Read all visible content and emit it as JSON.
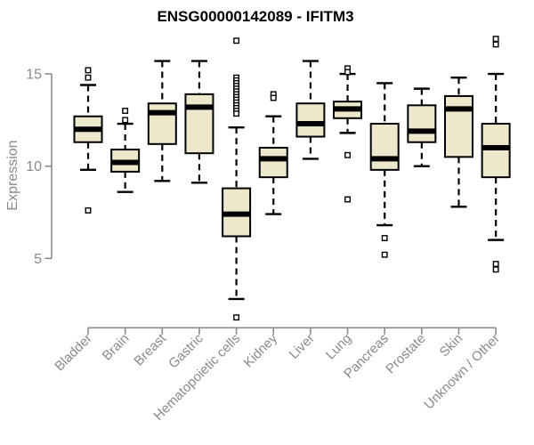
{
  "header": {
    "title": "ENSG00000142089 - IFITM3"
  },
  "colors": {
    "background": "#ffffff",
    "box_fill": "#ede7cc",
    "box_stroke": "#000000",
    "median": "#000000",
    "whisker": "#000000",
    "outlier_fill": "#ffffff",
    "outlier_stroke": "#000000",
    "axis": "#8a8a8a",
    "tick_label": "#8a8a8a",
    "title_text": "#000000"
  },
  "chart_data": {
    "type": "boxplot",
    "title": "ENSG00000142089 - IFITM3",
    "xlabel": "",
    "ylabel": "Expression",
    "y_ticks": [
      5,
      10,
      15
    ],
    "ylim": [
      1.5,
      17.2
    ],
    "grid": false,
    "legend": "none",
    "x_tick_label_rotation_deg": 45,
    "categories": [
      "Bladder",
      "Brain",
      "Breast",
      "Gastric",
      "Hematopoietic cells",
      "Kidney",
      "Liver",
      "Lung",
      "Pancreas",
      "Prostate",
      "Skin",
      "Unknown / Other"
    ],
    "series": [
      {
        "name": "Bladder",
        "whisker_low": 9.8,
        "q1": 11.3,
        "median": 12.0,
        "q3": 12.7,
        "whisker_high": 14.4,
        "outliers": [
          15.2,
          14.8,
          7.6
        ]
      },
      {
        "name": "Brain",
        "whisker_low": 8.6,
        "q1": 9.7,
        "median": 10.2,
        "q3": 10.9,
        "whisker_high": 12.3,
        "outliers": [
          13.0,
          12.5
        ]
      },
      {
        "name": "Breast",
        "whisker_low": 9.2,
        "q1": 11.2,
        "median": 12.9,
        "q3": 13.4,
        "whisker_high": 15.7,
        "outliers": []
      },
      {
        "name": "Gastric",
        "whisker_low": 9.1,
        "q1": 10.7,
        "median": 13.2,
        "q3": 13.9,
        "whisker_high": 15.7,
        "outliers": []
      },
      {
        "name": "Hematopoietic cells",
        "whisker_low": 2.8,
        "q1": 6.2,
        "median": 7.4,
        "q3": 8.8,
        "whisker_high": 12.1,
        "outliers": [
          16.8,
          14.8,
          14.65,
          14.5,
          14.35,
          14.2,
          14.05,
          13.9,
          13.75,
          13.6,
          13.45,
          13.3,
          13.15,
          13.0,
          12.85,
          1.8
        ]
      },
      {
        "name": "Kidney",
        "whisker_low": 7.4,
        "q1": 9.4,
        "median": 10.4,
        "q3": 11.0,
        "whisker_high": 12.7,
        "outliers": [
          13.9,
          13.7
        ]
      },
      {
        "name": "Liver",
        "whisker_low": 10.4,
        "q1": 11.6,
        "median": 12.3,
        "q3": 13.4,
        "whisker_high": 15.7,
        "outliers": []
      },
      {
        "name": "Lung",
        "whisker_low": 11.8,
        "q1": 12.6,
        "median": 13.1,
        "q3": 13.5,
        "whisker_high": 15.0,
        "outliers": [
          15.3,
          15.1,
          10.6,
          8.2
        ]
      },
      {
        "name": "Pancreas",
        "whisker_low": 6.8,
        "q1": 9.8,
        "median": 10.4,
        "q3": 12.3,
        "whisker_high": 14.5,
        "outliers": [
          6.1,
          5.2
        ]
      },
      {
        "name": "Prostate",
        "whisker_low": 10.0,
        "q1": 11.3,
        "median": 11.9,
        "q3": 13.3,
        "whisker_high": 14.2,
        "outliers": []
      },
      {
        "name": "Skin",
        "whisker_low": 7.8,
        "q1": 10.5,
        "median": 13.1,
        "q3": 13.8,
        "whisker_high": 14.8,
        "outliers": []
      },
      {
        "name": "Unknown / Other",
        "whisker_low": 6.0,
        "q1": 9.4,
        "median": 11.0,
        "q3": 12.3,
        "whisker_high": 15.0,
        "outliers": [
          16.9,
          16.6,
          4.7,
          4.4
        ]
      }
    ]
  }
}
